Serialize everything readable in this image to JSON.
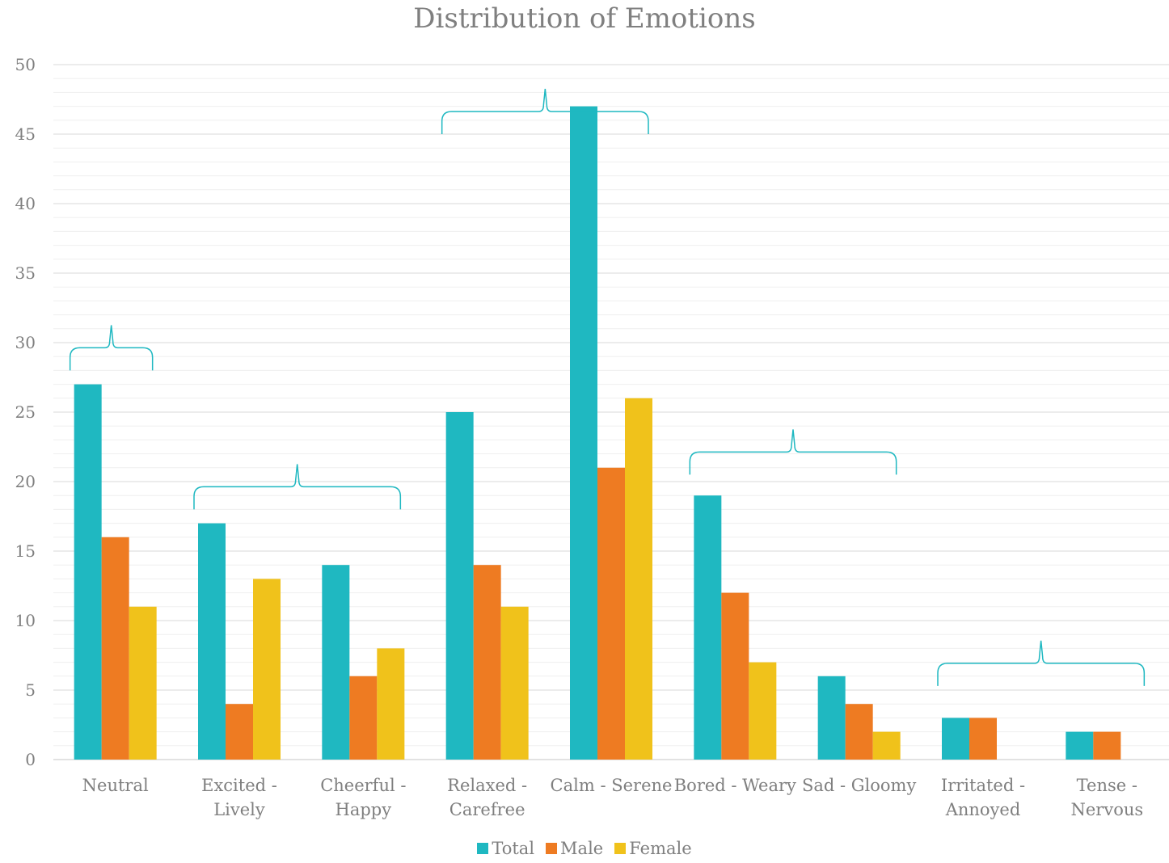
{
  "colors": {
    "total": "#1fb8c1",
    "male": "#ee7b22",
    "female": "#f0c21b",
    "bracket": "#1fb8c1",
    "grid_major": "#d9d9d9",
    "grid_minor": "#efefef",
    "text": "#7f7f7f"
  },
  "chart_data": {
    "type": "bar",
    "title": "Distribution of Emotions",
    "xlabel": "",
    "ylabel": "",
    "ylim": [
      0,
      50
    ],
    "y_ticks": [
      0,
      5,
      10,
      15,
      20,
      25,
      30,
      35,
      40,
      45,
      50
    ],
    "grid": true,
    "legend_position": "bottom",
    "categories": [
      [
        "Neutral"
      ],
      [
        "Excited -",
        "Lively"
      ],
      [
        "Cheerful -",
        "Happy"
      ],
      [
        "Relaxed -",
        "Carefree"
      ],
      [
        "Calm - Serene"
      ],
      [
        "Bored - Weary"
      ],
      [
        "Sad - Gloomy"
      ],
      [
        "Irritated -",
        "Annoyed"
      ],
      [
        "Tense -",
        "Nervous"
      ]
    ],
    "series": [
      {
        "name": "Total",
        "color_key": "total",
        "values": [
          27,
          17,
          14,
          25,
          47,
          19,
          6,
          3,
          2
        ]
      },
      {
        "name": "Male",
        "color_key": "male",
        "values": [
          16,
          4,
          6,
          14,
          21,
          12,
          4,
          3,
          2
        ]
      },
      {
        "name": "Female",
        "color_key": "female",
        "values": [
          11,
          13,
          8,
          11,
          26,
          7,
          2,
          0,
          0
        ]
      }
    ],
    "annotations": [
      {
        "type": "brace",
        "from_category": 0,
        "to_category": 0,
        "level": 28
      },
      {
        "type": "brace",
        "from_category": 1,
        "to_category": 2,
        "level": 18
      },
      {
        "type": "brace",
        "from_category": 3,
        "to_category": 4,
        "level": 45
      },
      {
        "type": "brace",
        "from_category": 5,
        "to_category": 6,
        "level": 20.5
      },
      {
        "type": "brace",
        "from_category": 7,
        "to_category": 8,
        "level": 5.3
      }
    ]
  }
}
